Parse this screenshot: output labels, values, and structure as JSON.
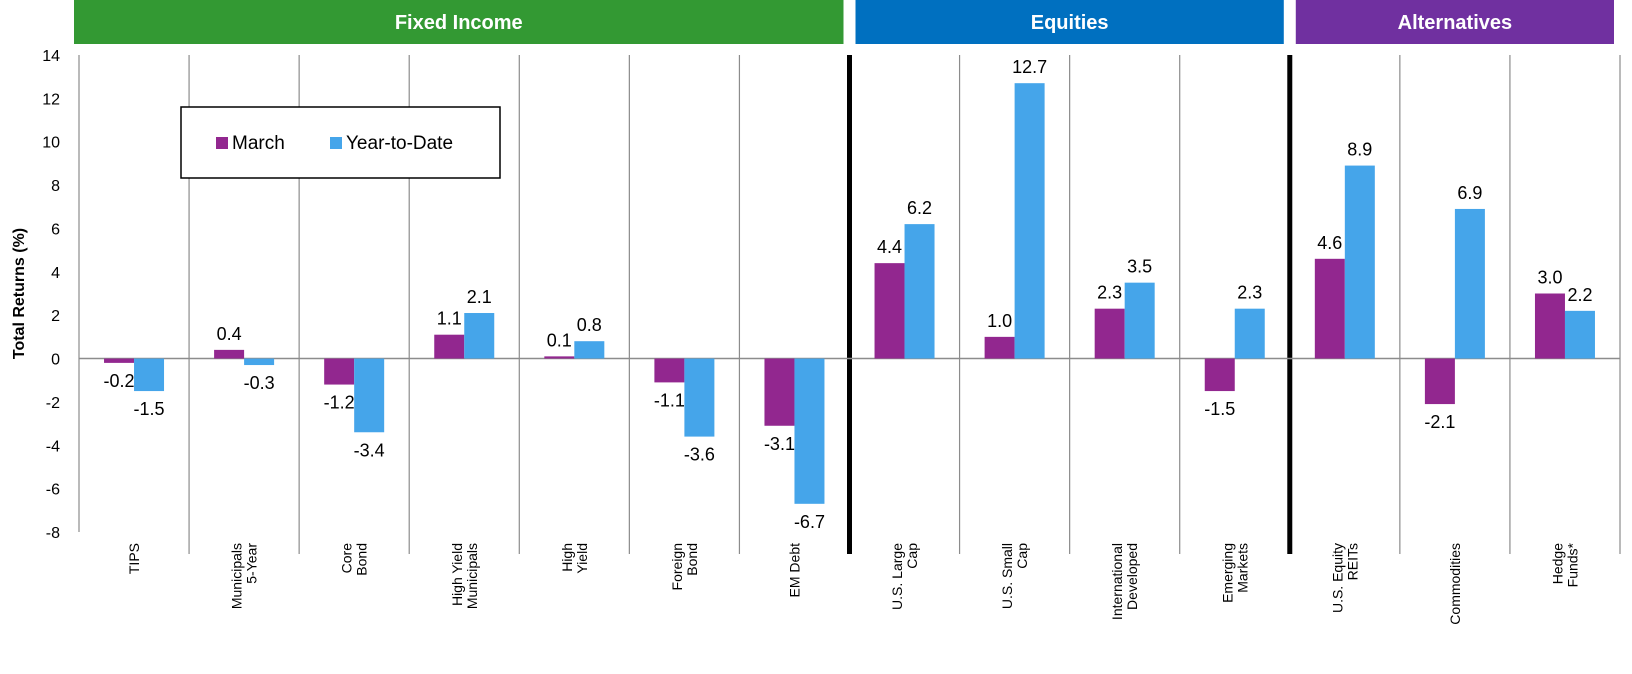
{
  "chart_data": {
    "type": "bar",
    "ylabel": "Total Returns (%)",
    "ylim": [
      -8,
      14
    ],
    "yticks": [
      "-8",
      "-6",
      "-4",
      "-2",
      "0",
      "2",
      "4",
      "6",
      "8",
      "10",
      "12",
      "14"
    ],
    "legend_position": "top-left",
    "groups": [
      {
        "name": "Fixed Income",
        "color": "#339933",
        "start": 0,
        "count": 7
      },
      {
        "name": "Equities",
        "color": "#0070C0",
        "start": 7,
        "count": 4
      },
      {
        "name": "Alternatives",
        "color": "#7030A0",
        "start": 11,
        "count": 3
      }
    ],
    "categories": [
      [
        "TIPS"
      ],
      [
        "Municipals",
        "5-Year"
      ],
      [
        "Core",
        "Bond"
      ],
      [
        "High Yield",
        "Municipals"
      ],
      [
        "High",
        "Yield"
      ],
      [
        "Foreign",
        "Bond"
      ],
      [
        "EM Debt"
      ],
      [
        "U.S. Large",
        "Cap"
      ],
      [
        "U.S. Small",
        "Cap"
      ],
      [
        "International",
        "Developed"
      ],
      [
        "Emerging",
        "Markets"
      ],
      [
        "U.S. Equity",
        "REITs"
      ],
      [
        "Commodities"
      ],
      [
        "Hedge",
        "Funds*"
      ]
    ],
    "series": [
      {
        "name": "March",
        "color": "#92278F",
        "values": [
          -0.2,
          0.4,
          -1.2,
          1.1,
          0.1,
          -1.1,
          -3.1,
          4.4,
          1.0,
          2.3,
          -1.5,
          4.6,
          -2.1,
          3.0
        ],
        "labels": [
          "-0.2",
          "0.4",
          "-1.2",
          "1.1",
          "0.1",
          "-1.1",
          "-3.1",
          "4.4",
          "1.0",
          "2.3",
          "-1.5",
          "4.6",
          "-2.1",
          "3.0"
        ]
      },
      {
        "name": "Year-to-Date",
        "color": "#45A5EA",
        "values": [
          -1.5,
          -0.3,
          -3.4,
          2.1,
          0.8,
          -3.6,
          -6.7,
          6.2,
          12.7,
          3.5,
          2.3,
          8.9,
          6.9,
          2.2
        ],
        "labels": [
          "-1.5",
          "-0.3",
          "-3.4",
          "2.1",
          "0.8",
          "-3.6",
          "-6.7",
          "6.2",
          "12.7",
          "3.5",
          "2.3",
          "8.9",
          "6.9",
          "2.2"
        ]
      }
    ]
  }
}
